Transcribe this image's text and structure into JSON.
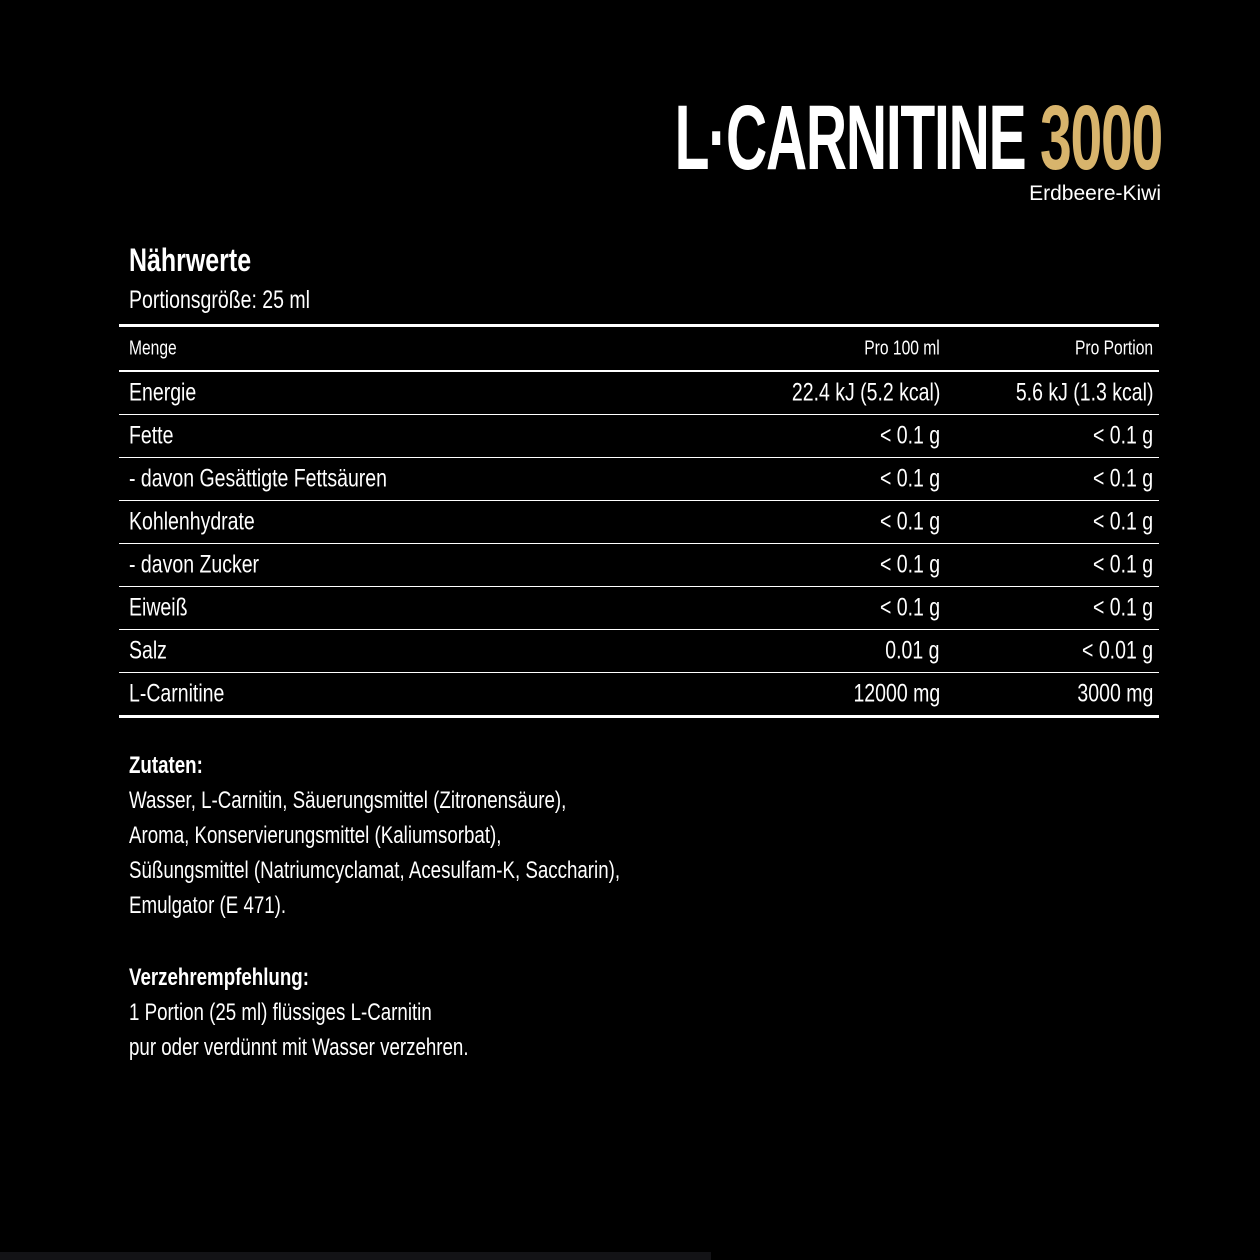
{
  "header": {
    "title_main": "L·CARNITINE",
    "title_accent": "3000",
    "flavor": "Erdbeere-Kiwi",
    "accent_color": "#d8b46c"
  },
  "nutrition": {
    "heading": "Nährwerte",
    "serving": "Portionsgröße: 25 ml",
    "columns": [
      "Menge",
      "Pro 100 ml",
      "Pro Portion"
    ],
    "rows": [
      [
        "Energie",
        "22.4 kJ (5.2 kcal)",
        "5.6 kJ (1.3 kcal)"
      ],
      [
        "Fette",
        "< 0.1 g",
        "< 0.1 g"
      ],
      [
        "- davon Gesättigte Fettsäuren",
        "< 0.1 g",
        "< 0.1 g"
      ],
      [
        "Kohlenhydrate",
        "< 0.1 g",
        "< 0.1 g"
      ],
      [
        "- davon Zucker",
        "< 0.1 g",
        "< 0.1 g"
      ],
      [
        "Eiweiß",
        "< 0.1 g",
        "< 0.1 g"
      ],
      [
        "Salz",
        "0.01 g",
        "< 0.01 g"
      ],
      [
        "L-Carnitine",
        "12000 mg",
        "3000 mg"
      ]
    ]
  },
  "ingredients": {
    "heading": "Zutaten:",
    "lines": [
      "Wasser, L-Carnitin, Säuerungsmittel (Zitronensäure),",
      "Aroma, Konservierungsmittel (Kaliumsorbat),",
      "Süßungsmittel (Natriumcyclamat, Acesulfam-K, Saccharin),",
      "Emulgator (E 471)."
    ]
  },
  "recommendation": {
    "heading": "Verzehrempfehlung:",
    "lines": [
      "1 Portion (25 ml) flüssiges L-Carnitin",
      "pur oder verdünnt mit Wasser verzehren."
    ]
  }
}
